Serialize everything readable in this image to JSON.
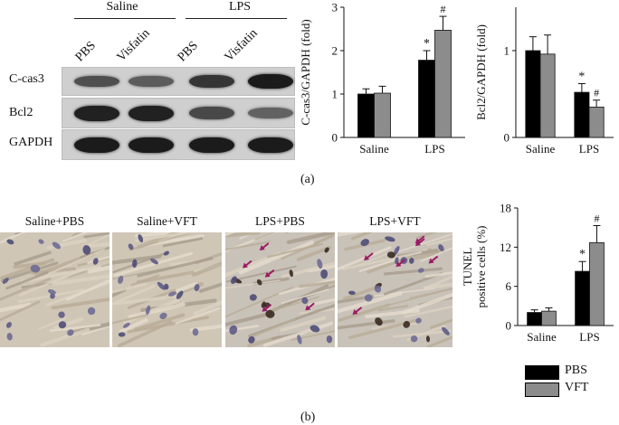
{
  "panel_labels": {
    "a": "(a)",
    "b": "(b)"
  },
  "blot": {
    "groups": [
      {
        "label": "Saline"
      },
      {
        "label": "LPS"
      }
    ],
    "lanes": [
      "PBS",
      "Visfatin",
      "PBS",
      "Visfatin"
    ],
    "rows": [
      {
        "label": "C-cas3",
        "band_intensity": [
          0.55,
          0.45,
          0.75,
          0.95
        ]
      },
      {
        "label": "Bcl2",
        "band_intensity": [
          0.9,
          0.9,
          0.6,
          0.4
        ]
      },
      {
        "label": "GAPDH",
        "band_intensity": [
          0.95,
          0.95,
          0.95,
          0.95
        ]
      }
    ]
  },
  "micrographs": [
    {
      "label": "Saline+PBS",
      "arrows": 0
    },
    {
      "label": "Saline+VFT",
      "arrows": 0
    },
    {
      "label": "LPS+PBS",
      "arrows": 5
    },
    {
      "label": "LPS+VFT",
      "arrows": 6
    }
  ],
  "legend": {
    "items": [
      {
        "label": "PBS",
        "color": "#000000"
      },
      {
        "label": "VFT",
        "color": "#8c8c8c"
      }
    ]
  },
  "colors": {
    "pbs": "#000000",
    "vft": "#8c8c8c",
    "arrow": "#9b1b64"
  },
  "chart_data": [
    {
      "type": "bar",
      "ylabel": "C-cas3/GAPDH (fold)",
      "categories": [
        "Saline",
        "LPS"
      ],
      "ylim": [
        0,
        3
      ],
      "yticks": [
        "0",
        "1",
        "2",
        "3"
      ],
      "series": [
        {
          "name": "PBS",
          "values": [
            1.0,
            1.78
          ],
          "errors": [
            0.12,
            0.22
          ]
        },
        {
          "name": "VFT",
          "values": [
            1.02,
            2.47
          ],
          "errors": [
            0.16,
            0.32
          ]
        }
      ],
      "annotations": [
        {
          "category": "LPS",
          "series": "PBS",
          "text": "*"
        },
        {
          "category": "LPS",
          "series": "VFT",
          "text": "#"
        }
      ]
    },
    {
      "type": "bar",
      "ylabel": "Bcl2/GAPDH (fold)",
      "categories": [
        "Saline",
        "LPS"
      ],
      "ylim": [
        0,
        1.5
      ],
      "yticks": [
        "0",
        "1"
      ],
      "series": [
        {
          "name": "PBS",
          "values": [
            1.0,
            0.52
          ],
          "errors": [
            0.16,
            0.1
          ]
        },
        {
          "name": "VFT",
          "values": [
            0.96,
            0.35
          ],
          "errors": [
            0.22,
            0.08
          ]
        }
      ],
      "annotations": [
        {
          "category": "LPS",
          "series": "PBS",
          "text": "*"
        },
        {
          "category": "LPS",
          "series": "VFT",
          "text": "#"
        }
      ]
    },
    {
      "type": "bar",
      "ylabel": "TUNEL positive cells (%)",
      "categories": [
        "Saline",
        "LPS"
      ],
      "ylim": [
        0,
        18
      ],
      "yticks": [
        "0",
        "6",
        "12",
        "18"
      ],
      "series": [
        {
          "name": "PBS",
          "values": [
            2.0,
            8.3
          ],
          "errors": [
            0.4,
            1.5
          ]
        },
        {
          "name": "VFT",
          "values": [
            2.2,
            12.7
          ],
          "errors": [
            0.5,
            2.6
          ]
        }
      ],
      "annotations": [
        {
          "category": "LPS",
          "series": "PBS",
          "text": "*"
        },
        {
          "category": "LPS",
          "series": "VFT",
          "text": "#"
        }
      ]
    }
  ]
}
